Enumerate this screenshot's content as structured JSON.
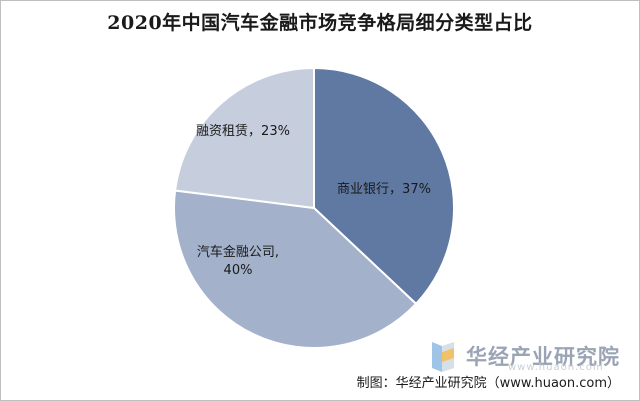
{
  "chart_data": {
    "type": "pie",
    "title": "2020年中国汽车金融市场竞争格局细分类型占比",
    "categories": [
      "商业银行",
      "汽车金融公司",
      "融资租赁"
    ],
    "values": [
      37,
      40,
      23
    ],
    "labels": [
      "商业银行，37%",
      "汽车金融公司,",
      "融资租赁，23%"
    ],
    "label_second_lines": [
      "",
      "40%",
      ""
    ],
    "colors": [
      "#5f79a3",
      "#a3b1cb",
      "#c6cedd"
    ],
    "legend": "none"
  },
  "watermark": {
    "text": "华经产业研究院",
    "url": "www.huaon.com"
  },
  "source": "制图：华经产业研究院（www.huaon.com）"
}
